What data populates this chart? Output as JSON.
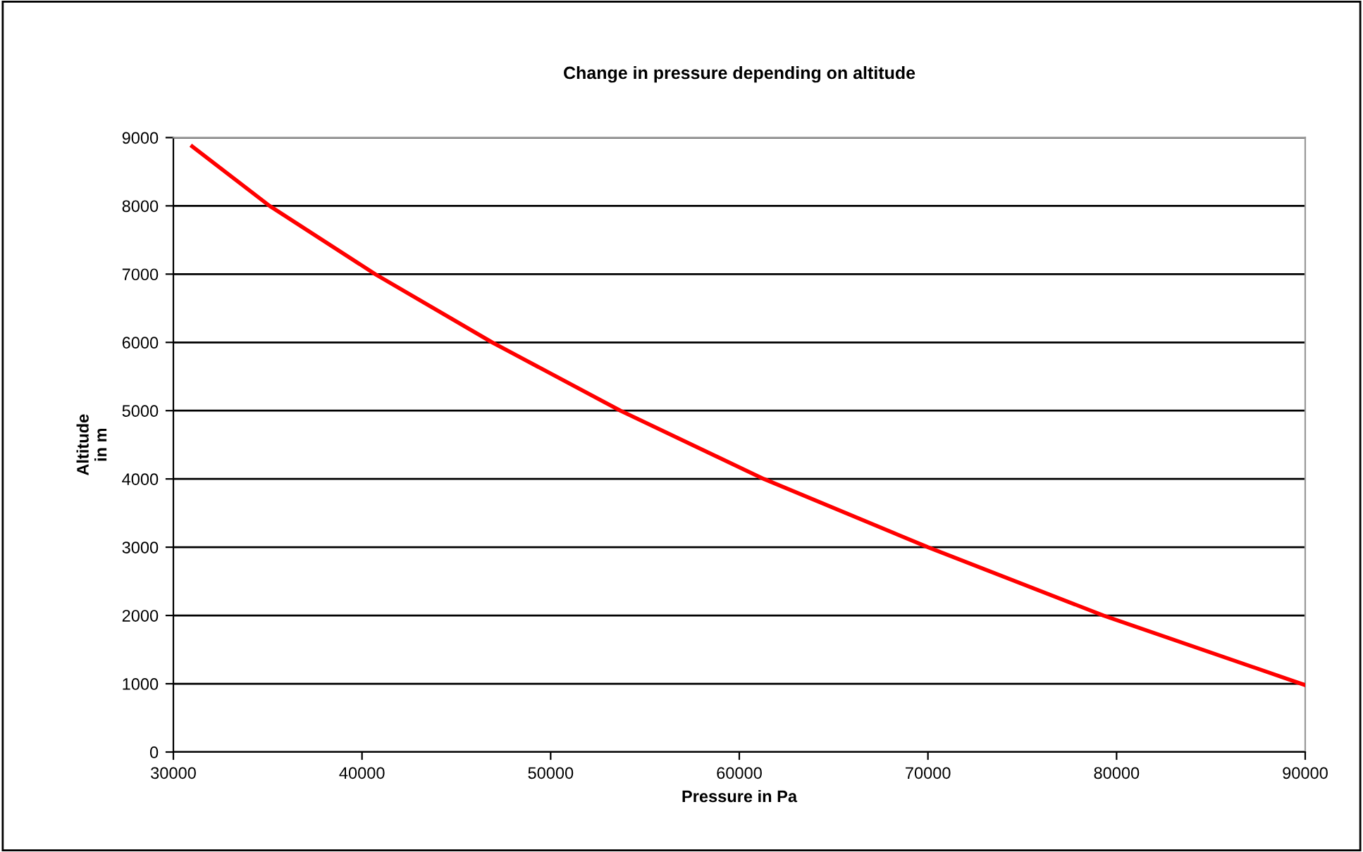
{
  "chart_data": {
    "type": "line",
    "title": "Change in pressure depending on altitude",
    "xlabel": "Pressure in Pa",
    "ylabel": "Altitude\nin m",
    "series": [
      {
        "color": "#ff0000",
        "x": [
          31000,
          35100,
          40700,
          46900,
          53700,
          61300,
          70000,
          79300,
          90000
        ],
        "values": [
          8870,
          8000,
          7000,
          6000,
          5000,
          4000,
          3000,
          2000,
          980
        ]
      }
    ],
    "xlim": [
      30000,
      90000
    ],
    "xticks": [
      30000,
      40000,
      50000,
      60000,
      70000,
      80000,
      90000
    ],
    "ylim": [
      0,
      9000
    ],
    "yticks": [
      0,
      1000,
      2000,
      3000,
      4000,
      5000,
      6000,
      7000,
      8000,
      9000
    ],
    "grid": "y",
    "marker": "none",
    "line_style": "solid"
  }
}
